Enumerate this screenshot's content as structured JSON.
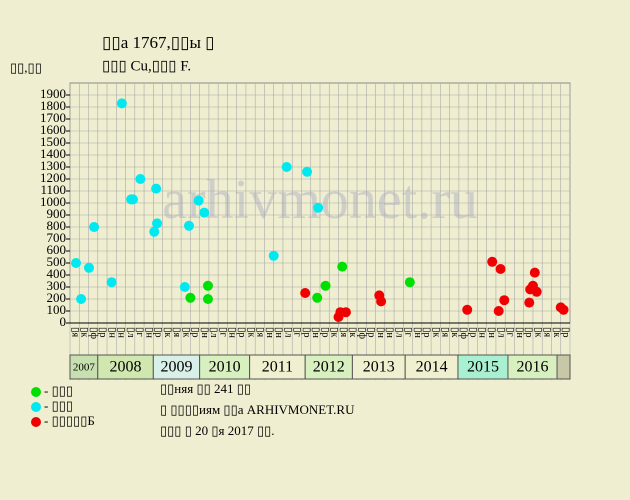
{
  "chart_data": {
    "type": "scatter",
    "title": "▯▯а 1767,▯▯ы ▯",
    "subtitle": "▯▯▯ Cu,▯▯▯ F.",
    "y_label": "▯▯,▯▯",
    "watermark": "arhivmonet.ru",
    "notes": [
      "▯▯няя ▯▯ 241 ▯▯",
      "▯ ▯▯▯▯иям ▯▯а ARHIVMONET.RU",
      "▯▯▯ ▯ 20 ▯я 2017 ▯▯."
    ],
    "xlim": [
      0,
      54
    ],
    "ylim": [
      0,
      2000
    ],
    "yticks": [
      0,
      100,
      200,
      300,
      400,
      500,
      600,
      700,
      800,
      900,
      1000,
      1100,
      1200,
      1300,
      1400,
      1500,
      1600,
      1700,
      1800,
      1900
    ],
    "grid": true,
    "categories": [
      "▯я",
      "▯к",
      "▯ф",
      "▯р",
      "▯н",
      "▯н",
      "▯л",
      "▯г",
      "▯н",
      "▯р",
      "▯к",
      "▯я",
      "▯к",
      "▯р",
      "▯н",
      "▯л",
      "▯г",
      "▯н",
      "▯р",
      "▯к",
      "▯я",
      "▯н",
      "▯н",
      "▯л",
      "▯г",
      "▯р",
      "▯н",
      "▯р",
      "▯к",
      "▯я",
      "▯к",
      "▯ф",
      "▯р",
      "▯н",
      "▯н",
      "▯л",
      "▯г",
      "▯н",
      "▯р",
      "▯к",
      "▯я",
      "▯к",
      "▯ф",
      "▯р",
      "▯н",
      "▯н",
      "▯л",
      "▯г",
      "▯н",
      "▯р",
      "▯к",
      "▯я",
      "▯к",
      "▯р"
    ],
    "years": [
      {
        "label": "2007",
        "from": 0,
        "to": 3,
        "color": "#c8e0b0"
      },
      {
        "label": "2008",
        "from": 3,
        "to": 9,
        "color": "#d0e8b0"
      },
      {
        "label": "2009",
        "from": 9,
        "to": 14,
        "color": "#d8f0e8"
      },
      {
        "label": "2010",
        "from": 14,
        "to": 19.4,
        "color": "#d8f0c0"
      },
      {
        "label": "2011",
        "from": 19.4,
        "to": 25.4,
        "color": "#f0f0d0"
      },
      {
        "label": "2012",
        "from": 25.4,
        "to": 30.5,
        "color": "#d8f0c0"
      },
      {
        "label": "2013",
        "from": 30.5,
        "to": 36.2,
        "color": "#f0f0d0"
      },
      {
        "label": "2014",
        "from": 36.2,
        "to": 41.9,
        "color": "#f0f0d0"
      },
      {
        "label": "2015",
        "from": 41.9,
        "to": 47.3,
        "color": "#a8f0d0"
      },
      {
        "label": "2016",
        "from": 47.3,
        "to": 52.6,
        "color": "#d8f0c0"
      }
    ],
    "series": [
      {
        "name": "- ▯▯▯",
        "color": "#00e000",
        "x": [
          13,
          14.9,
          14.9,
          26.7,
          27.6,
          29.4,
          36.7
        ],
        "values": [
          210,
          310,
          200,
          210,
          310,
          470,
          340
        ]
      },
      {
        "name": "- ▯▯▯",
        "color": "#00e8f0",
        "x": [
          0.65,
          1.2,
          2.05,
          2.6,
          4.5,
          5.6,
          6.6,
          6.8,
          7.6,
          9.1,
          9.3,
          9.4,
          12.4,
          12.85,
          13.9,
          14.5,
          22,
          23.4,
          25.6,
          26.8
        ],
        "values": [
          500,
          200,
          460,
          800,
          340,
          1830,
          1030,
          1030,
          1200,
          760,
          1120,
          830,
          300,
          810,
          1020,
          920,
          560,
          1300,
          1260,
          960
        ]
      },
      {
        "name": "- ▯▯▯▯▯Б",
        "color": "#f00000",
        "x": [
          25.4,
          29,
          29.2,
          29.8,
          33.4,
          33.6,
          42.9,
          45.6,
          46.3,
          46.5,
          46.9,
          49.6,
          49.7,
          50,
          50.2,
          50.4,
          53,
          53.3
        ],
        "values": [
          250,
          50,
          90,
          90,
          230,
          180,
          110,
          510,
          100,
          450,
          190,
          170,
          280,
          310,
          420,
          260,
          130,
          110
        ]
      }
    ]
  }
}
